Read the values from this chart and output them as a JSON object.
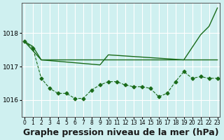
{
  "bg_color": "#cff0f0",
  "plot_bg_color": "#cff0f0",
  "grid_color": "#ffffff",
  "line_color": "#1a6b1a",
  "marker_color": "#1a6b1a",
  "xlabel": "Graphe pression niveau de la mer (hPa)",
  "xlabel_fontsize": 9,
  "yticks": [
    1016,
    1017,
    1018
  ],
  "ylim": [
    1015.5,
    1018.9
  ],
  "xlim": [
    -0.3,
    23.3
  ],
  "xticks": [
    0,
    1,
    2,
    3,
    4,
    5,
    6,
    7,
    8,
    9,
    10,
    11,
    12,
    13,
    14,
    15,
    16,
    17,
    18,
    19,
    20,
    21,
    22,
    23
  ],
  "xtick_labels": [
    "0",
    "1",
    "2",
    "3",
    "4",
    "5",
    "6",
    "7",
    "8",
    "9",
    "10",
    "11",
    "12",
    "13",
    "14",
    "15",
    "16",
    "17",
    "18",
    "19",
    "20",
    "21",
    "22",
    "23"
  ],
  "series1_x": [
    0,
    1,
    2,
    3,
    4,
    5,
    6,
    7,
    8,
    9,
    10,
    11,
    12,
    13,
    14,
    15,
    16,
    17,
    18,
    19,
    20,
    21,
    22,
    23
  ],
  "series1_y": [
    1017.75,
    1017.6,
    1017.2,
    1017.2,
    1017.2,
    1017.2,
    1017.2,
    1017.2,
    1017.2,
    1017.2,
    1017.2,
    1017.2,
    1017.2,
    1017.2,
    1017.2,
    1017.2,
    1017.2,
    1017.2,
    1017.2,
    1017.2,
    1017.2,
    1017.2,
    1017.2,
    1017.2
  ],
  "series1_linestyle": "-",
  "series1_marker": null,
  "series2_x": [
    0,
    2,
    9,
    10,
    19,
    21,
    22,
    23
  ],
  "series2_y": [
    1017.75,
    1017.2,
    1017.05,
    1017.35,
    1017.2,
    1017.95,
    1018.2,
    1018.75
  ],
  "series2_linestyle": "-",
  "series2_marker": null,
  "series3_x": [
    0,
    1,
    2,
    3,
    4,
    5,
    6,
    7,
    8,
    9,
    10,
    11,
    12,
    13,
    14,
    15,
    16,
    17,
    18,
    19,
    20,
    21,
    22,
    23
  ],
  "series3_y": [
    1017.75,
    1017.55,
    1016.65,
    1016.35,
    1016.2,
    1016.2,
    1016.05,
    1016.05,
    1016.3,
    1016.45,
    1016.55,
    1016.55,
    1016.45,
    1016.4,
    1016.4,
    1016.35,
    1016.1,
    1016.2,
    1016.55,
    1016.85,
    1016.65,
    1016.7,
    1016.65,
    1016.65
  ],
  "series3_linestyle": "--",
  "series3_marker": "D"
}
